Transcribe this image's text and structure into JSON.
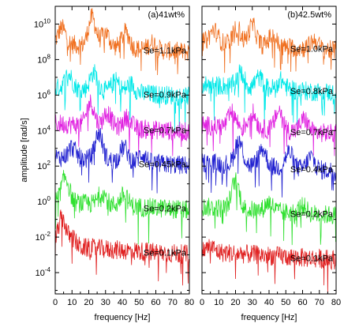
{
  "chart_data": [
    {
      "type": "line",
      "title": "(a)41wt%",
      "xlabel": "frequency [Hz]",
      "ylabel": "amplitude [rad/s]",
      "log_y": true,
      "xlim": [
        0,
        80
      ],
      "ylim_log10": [
        -5.2,
        11
      ],
      "x_ticks": [
        "0",
        "10",
        "20",
        "30",
        "40",
        "50",
        "60",
        "70",
        "80"
      ],
      "y_ticks": [
        {
          "base": "10",
          "exp": "10",
          "log10": 10
        },
        {
          "base": "10",
          "exp": "8",
          "log10": 8
        },
        {
          "base": "10",
          "exp": "6",
          "log10": 6
        },
        {
          "base": "10",
          "exp": "4",
          "log10": 4
        },
        {
          "base": "10",
          "exp": "2",
          "log10": 2
        },
        {
          "base": "10",
          "exp": "0",
          "log10": 0
        },
        {
          "base": "10",
          "exp": "-2",
          "log10": -2
        },
        {
          "base": "10",
          "exp": "-4",
          "log10": -4
        }
      ],
      "legend_position": "labels at the right end of each curve",
      "series": [
        {
          "name": "Se=1.1kPa",
          "color": "#f07020",
          "baseline_log10": 8.9,
          "peaks": [
            {
              "x": 4,
              "h": 0.9
            },
            {
              "x": 22,
              "h": 1.6
            },
            {
              "x": 30,
              "h": 0.8
            },
            {
              "x": 42,
              "h": 0.9
            },
            {
              "x": 58,
              "h": 0.4
            }
          ]
        },
        {
          "name": "Se=0.9kPa",
          "color": "#00e8e8",
          "baseline_log10": 6.4,
          "peaks": [
            {
              "x": 8,
              "h": 0.8
            },
            {
              "x": 23,
              "h": 1.0
            },
            {
              "x": 36,
              "h": 0.6
            },
            {
              "x": 45,
              "h": 0.5
            }
          ]
        },
        {
          "name": "Se=0.7kPa",
          "color": "#e020e0",
          "baseline_log10": 4.4,
          "peaks": [
            {
              "x": 21,
              "h": 1.3
            },
            {
              "x": 31,
              "h": 0.8
            },
            {
              "x": 43,
              "h": 0.6
            }
          ]
        },
        {
          "name": "Se=0.45kPa",
          "color": "#2020d0",
          "baseline_log10": 2.5,
          "peaks": [
            {
              "x": 10,
              "h": 0.6
            },
            {
              "x": 26,
              "h": 1.5
            },
            {
              "x": 41,
              "h": 0.8
            },
            {
              "x": 52,
              "h": 0.5
            }
          ]
        },
        {
          "name": "Se=0.2kPa",
          "color": "#30e030",
          "baseline_log10": 0.0,
          "peaks": [
            {
              "x": 6,
              "h": 1.4
            },
            {
              "x": 28,
              "h": 0.7
            },
            {
              "x": 41,
              "h": 0.6
            }
          ]
        },
        {
          "name": "Se=0.1kPa",
          "color": "#e02020",
          "baseline_log10": -2.5,
          "peaks": [
            {
              "x": 4,
              "h": 1.6
            },
            {
              "x": 10,
              "h": 0.5
            }
          ]
        }
      ]
    },
    {
      "type": "line",
      "title": "(b)42.5wt%",
      "xlabel": "frequency [Hz]",
      "log_y": true,
      "xlim": [
        0,
        80
      ],
      "ylim_log10": [
        -5.2,
        11
      ],
      "x_ticks": [
        "0",
        "10",
        "20",
        "30",
        "40",
        "50",
        "60",
        "70",
        "80"
      ],
      "legend_position": "labels at the right end of each curve",
      "series": [
        {
          "name": "Se=1.0kPa",
          "color": "#f07020",
          "baseline_log10": 9.0,
          "peaks": [
            {
              "x": 7,
              "h": 0.7
            },
            {
              "x": 21,
              "h": 0.9
            },
            {
              "x": 30,
              "h": 1.1
            },
            {
              "x": 42,
              "h": 0.6
            },
            {
              "x": 67,
              "h": 0.5
            }
          ]
        },
        {
          "name": "Se=0.8kPa",
          "color": "#00e8e8",
          "baseline_log10": 6.6,
          "peaks": [
            {
              "x": 23,
              "h": 0.8
            },
            {
              "x": 34,
              "h": 0.6
            },
            {
              "x": 47,
              "h": 0.5
            }
          ]
        },
        {
          "name": "Se=0.7kPa",
          "color": "#e020e0",
          "baseline_log10": 4.3,
          "peaks": [
            {
              "x": 18,
              "h": 0.8
            },
            {
              "x": 30,
              "h": 0.9
            },
            {
              "x": 46,
              "h": 1.1
            },
            {
              "x": 61,
              "h": 0.7
            }
          ]
        },
        {
          "name": "Se=0.4kPa",
          "color": "#2020d0",
          "baseline_log10": 2.2,
          "peaks": [
            {
              "x": 22,
              "h": 1.4
            },
            {
              "x": 36,
              "h": 1.0
            },
            {
              "x": 52,
              "h": 0.9
            },
            {
              "x": 65,
              "h": 0.7
            }
          ]
        },
        {
          "name": "Se=0.2kPa",
          "color": "#30e030",
          "baseline_log10": -0.3,
          "peaks": [
            {
              "x": 20,
              "h": 1.6
            },
            {
              "x": 40,
              "h": 0.5
            },
            {
              "x": 60,
              "h": 0.4
            }
          ]
        },
        {
          "name": "Se=0.1kPa",
          "color": "#e02020",
          "baseline_log10": -2.8,
          "peaks": [
            {
              "x": 5,
              "h": 0.3
            }
          ]
        }
      ]
    }
  ]
}
